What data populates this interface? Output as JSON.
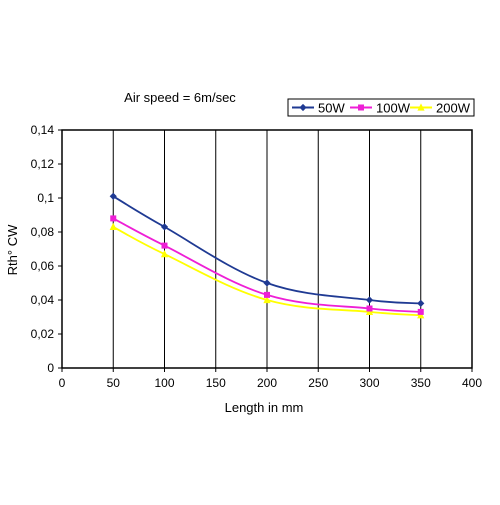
{
  "chart_data": {
    "type": "line",
    "title": "Air speed = 6m/sec",
    "xlabel": "Length in mm",
    "ylabel": "Rth° CW",
    "xlim": [
      0,
      400
    ],
    "ylim": [
      0,
      0.14
    ],
    "x_ticks": [
      0,
      50,
      100,
      150,
      200,
      250,
      300,
      350,
      400
    ],
    "x_tick_labels": [
      "0",
      "50",
      "100",
      "150",
      "200",
      "250",
      "300",
      "350",
      "400"
    ],
    "y_ticks": [
      0,
      0.02,
      0.04,
      0.06,
      0.08,
      0.1,
      0.12,
      0.14
    ],
    "y_tick_labels": [
      "0",
      "0,02",
      "0,04",
      "0,06",
      "0,08",
      "0,1",
      "0,12",
      "0,14"
    ],
    "grid": "vertical",
    "legend_position": "top-right",
    "series": [
      {
        "name": "50W",
        "color": "#1f3a93",
        "marker": "diamond",
        "x": [
          50,
          100,
          200,
          300,
          350
        ],
        "y": [
          0.101,
          0.083,
          0.05,
          0.04,
          0.038
        ]
      },
      {
        "name": "100W",
        "color": "#ee1fd6",
        "marker": "square",
        "x": [
          50,
          100,
          200,
          300,
          350
        ],
        "y": [
          0.088,
          0.072,
          0.043,
          0.035,
          0.033
        ]
      },
      {
        "name": "200W",
        "color": "#ffff00",
        "marker": "triangle",
        "x": [
          50,
          100,
          200,
          300,
          350
        ],
        "y": [
          0.083,
          0.067,
          0.04,
          0.033,
          0.031
        ]
      }
    ]
  }
}
